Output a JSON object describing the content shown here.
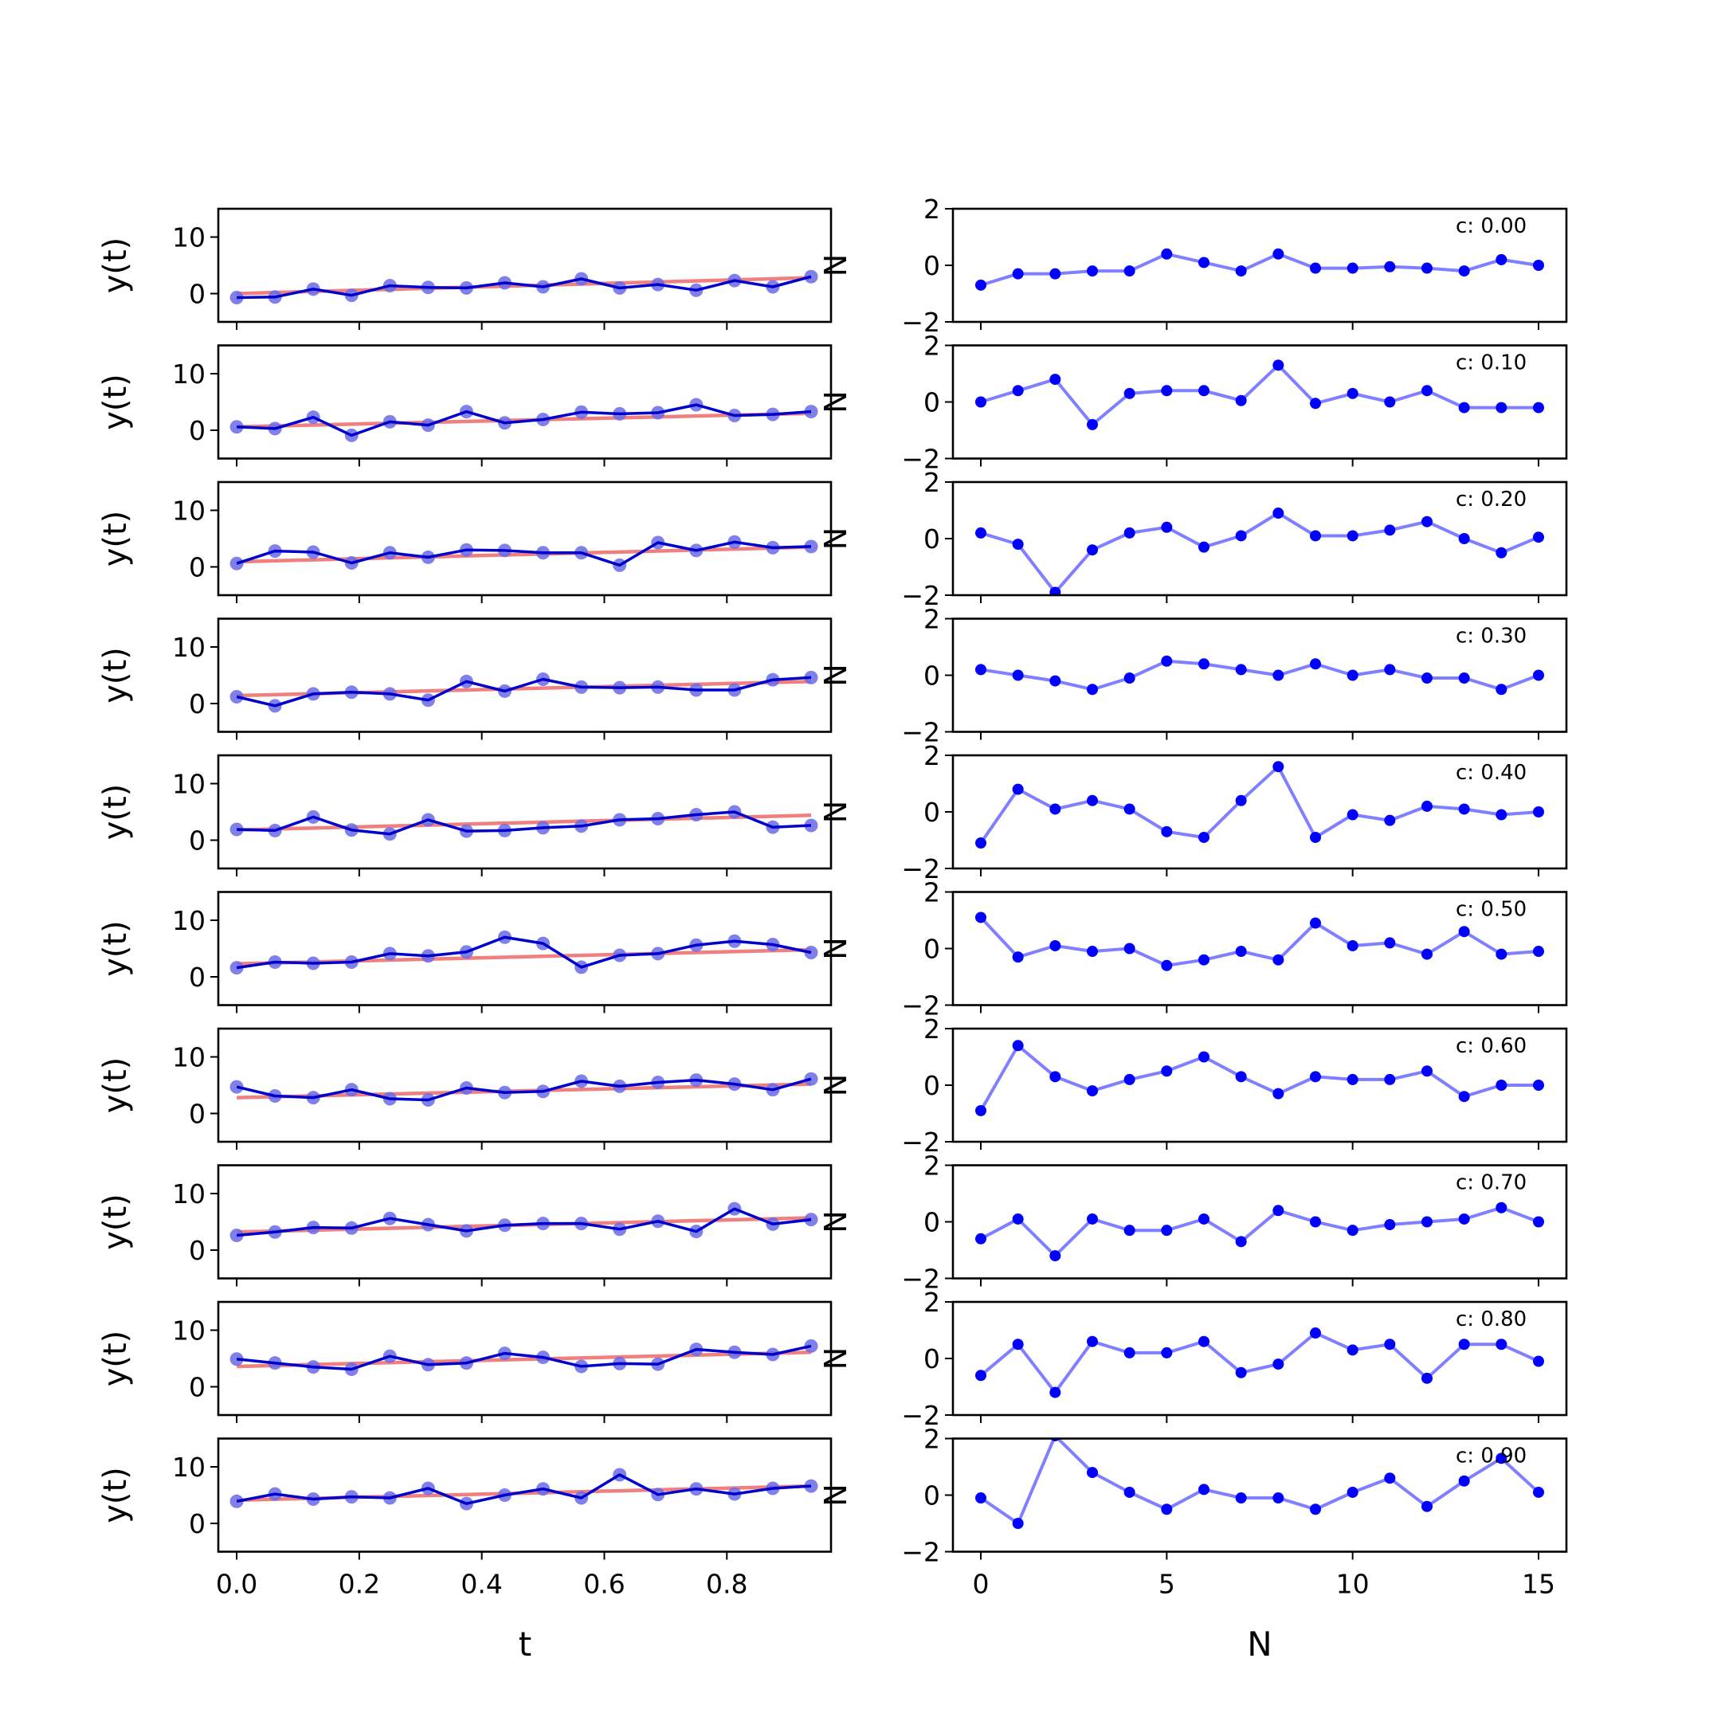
{
  "figure": {
    "left_xlabel": "t",
    "right_xlabel": "N",
    "left_ylabel": "y(t)",
    "right_ylabel": "N",
    "colors": {
      "fit_line": "#f08080",
      "signal_line": "#0000cc",
      "signal_marker": "#6a6ae8",
      "residual": "#0000ff"
    }
  },
  "chart_data": [
    {
      "type": "line",
      "panel": "left",
      "xlim": [
        -0.03,
        0.97
      ],
      "ylim": [
        -5,
        15
      ],
      "xticks": [
        0.0,
        0.2,
        0.4,
        0.6,
        0.8
      ],
      "xticklabels": [
        "0.0",
        "0.2",
        "0.4",
        "0.6",
        "0.8"
      ],
      "yticks": [
        0,
        10
      ],
      "yticklabels": [
        "0",
        "10"
      ],
      "x": [
        0,
        0.0625,
        0.125,
        0.1875,
        0.25,
        0.3125,
        0.375,
        0.4375,
        0.5,
        0.5625,
        0.625,
        0.6875,
        0.75,
        0.8125,
        0.875,
        0.9375
      ],
      "rows": [
        {
          "label": "c: 0.00",
          "fit": [
            0.0,
            2.8
          ],
          "values": [
            -0.7,
            -0.6,
            0.8,
            -0.3,
            1.4,
            1.1,
            1.0,
            1.9,
            1.2,
            2.6,
            1.0,
            1.6,
            0.6,
            2.3,
            1.2,
            3.0
          ]
        },
        {
          "label": "c: 0.10",
          "fit": [
            0.6,
            3.0
          ],
          "values": [
            0.6,
            0.3,
            2.3,
            -0.9,
            1.5,
            0.9,
            3.3,
            1.3,
            1.9,
            3.2,
            2.9,
            3.1,
            4.5,
            2.6,
            2.8,
            3.3
          ]
        },
        {
          "label": "c: 0.20",
          "fit": [
            0.9,
            3.5
          ],
          "values": [
            0.6,
            2.8,
            2.6,
            0.7,
            2.5,
            1.7,
            3.0,
            2.9,
            2.5,
            2.5,
            0.3,
            4.3,
            2.9,
            4.4,
            3.4,
            3.6
          ]
        },
        {
          "label": "c: 0.30",
          "fit": [
            1.4,
            3.9
          ],
          "values": [
            1.2,
            -0.4,
            1.7,
            2.0,
            1.7,
            0.6,
            3.9,
            2.2,
            4.3,
            2.9,
            2.8,
            2.9,
            2.4,
            2.4,
            4.2,
            4.6
          ]
        },
        {
          "label": "c: 0.40",
          "fit": [
            1.8,
            4.4
          ],
          "values": [
            1.9,
            1.7,
            4.1,
            1.8,
            1.1,
            3.6,
            1.6,
            1.7,
            2.2,
            2.5,
            3.6,
            3.8,
            4.5,
            5.0,
            2.3,
            2.6
          ]
        },
        {
          "label": "c: 0.50",
          "fit": [
            2.3,
            4.8
          ],
          "values": [
            1.6,
            2.6,
            2.4,
            2.6,
            4.1,
            3.7,
            4.4,
            7.0,
            5.9,
            1.7,
            3.8,
            4.1,
            5.6,
            6.3,
            5.7,
            4.3
          ]
        },
        {
          "label": "c: 0.60",
          "fit": [
            2.8,
            5.2
          ],
          "values": [
            4.7,
            3.1,
            2.8,
            4.2,
            2.6,
            2.4,
            4.5,
            3.7,
            3.9,
            5.7,
            4.8,
            5.5,
            5.9,
            5.2,
            4.2,
            6.1
          ]
        },
        {
          "label": "c: 0.70",
          "fit": [
            3.2,
            5.7
          ],
          "values": [
            2.6,
            3.2,
            4.0,
            3.9,
            5.6,
            4.5,
            3.4,
            4.4,
            4.7,
            4.7,
            3.7,
            5.1,
            3.3,
            7.3,
            4.6,
            5.4
          ]
        },
        {
          "label": "c: 0.80",
          "fit": [
            3.6,
            6.1
          ],
          "values": [
            4.9,
            4.2,
            3.5,
            3.1,
            5.4,
            3.9,
            4.2,
            5.9,
            5.2,
            3.6,
            4.1,
            4.0,
            6.6,
            6.1,
            5.7,
            7.2
          ]
        },
        {
          "label": "c: 0.90",
          "fit": [
            4.1,
            6.6
          ],
          "values": [
            3.9,
            5.2,
            4.3,
            4.7,
            4.5,
            6.2,
            3.5,
            5.0,
            6.1,
            4.5,
            8.6,
            5.1,
            6.1,
            5.2,
            6.2,
            6.6
          ]
        }
      ]
    },
    {
      "type": "line",
      "panel": "right",
      "xlim": [
        -0.75,
        15.75
      ],
      "ylim": [
        -2,
        2
      ],
      "xticks": [
        0,
        5,
        10,
        15
      ],
      "xticklabels": [
        "0",
        "5",
        "10",
        "15"
      ],
      "yticks": [
        -2,
        0,
        2
      ],
      "yticklabels": [
        "−2",
        "0",
        "2"
      ],
      "x": [
        0,
        1,
        2,
        3,
        4,
        5,
        6,
        7,
        8,
        9,
        10,
        11,
        12,
        13,
        14,
        15
      ],
      "rows": [
        {
          "label": "c: 0.00",
          "values": [
            -0.7,
            -0.3,
            -0.3,
            -0.2,
            -0.2,
            0.4,
            0.1,
            -0.2,
            0.4,
            -0.1,
            -0.1,
            -0.05,
            -0.1,
            -0.2,
            0.2,
            0.0
          ]
        },
        {
          "label": "c: 0.10",
          "values": [
            0.0,
            0.4,
            0.8,
            -0.8,
            0.3,
            0.4,
            0.4,
            0.05,
            1.3,
            -0.05,
            0.3,
            0.0,
            0.4,
            -0.2,
            -0.2,
            -0.2
          ]
        },
        {
          "label": "c: 0.20",
          "values": [
            0.2,
            -0.2,
            -1.9,
            -0.4,
            0.2,
            0.4,
            -0.3,
            0.1,
            0.9,
            0.1,
            0.1,
            0.3,
            0.6,
            0.0,
            -0.5,
            0.05
          ]
        },
        {
          "label": "c: 0.30",
          "values": [
            0.2,
            0.0,
            -0.2,
            -0.5,
            -0.1,
            0.5,
            0.4,
            0.2,
            0.0,
            0.4,
            0.0,
            0.2,
            -0.1,
            -0.1,
            -0.5,
            0.0
          ]
        },
        {
          "label": "c: 0.40",
          "values": [
            -1.1,
            0.8,
            0.1,
            0.4,
            0.1,
            -0.7,
            -0.9,
            0.4,
            1.6,
            -0.9,
            -0.1,
            -0.3,
            0.2,
            0.1,
            -0.1,
            0.0
          ]
        },
        {
          "label": "c: 0.50",
          "values": [
            1.1,
            -0.3,
            0.1,
            -0.1,
            0.0,
            -0.6,
            -0.4,
            -0.1,
            -0.4,
            0.9,
            0.1,
            0.2,
            -0.2,
            0.6,
            -0.2,
            -0.1
          ]
        },
        {
          "label": "c: 0.60",
          "values": [
            -0.9,
            1.4,
            0.3,
            -0.2,
            0.2,
            0.5,
            1.0,
            0.3,
            -0.3,
            0.3,
            0.2,
            0.2,
            0.5,
            -0.4,
            0.0,
            0.0
          ]
        },
        {
          "label": "c: 0.70",
          "values": [
            -0.6,
            0.1,
            -1.2,
            0.1,
            -0.3,
            -0.3,
            0.1,
            -0.7,
            0.4,
            0.0,
            -0.3,
            -0.1,
            0.0,
            0.1,
            0.5,
            0.0
          ]
        },
        {
          "label": "c: 0.80",
          "values": [
            -0.6,
            0.5,
            -1.2,
            0.6,
            0.2,
            0.2,
            0.6,
            -0.5,
            -0.2,
            0.9,
            0.3,
            0.5,
            -0.7,
            0.5,
            0.5,
            -0.1
          ]
        },
        {
          "label": "c: 0.90",
          "values": [
            -0.1,
            -1.0,
            2.1,
            0.8,
            0.1,
            -0.5,
            0.2,
            -0.1,
            -0.1,
            -0.5,
            0.1,
            0.6,
            -0.4,
            0.5,
            1.3,
            0.1
          ]
        }
      ]
    }
  ]
}
